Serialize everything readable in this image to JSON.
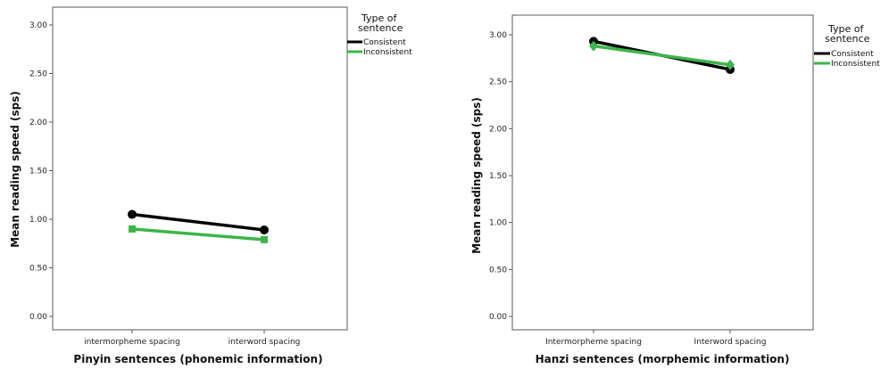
{
  "chart_data": [
    {
      "type": "line",
      "xlabel": "Pinyin sentences (phonemic information)",
      "ylabel": "Mean reading speed (sps)",
      "categories": [
        "intermorpheme spacing",
        "interword spacing"
      ],
      "ylim": [
        0,
        3.0
      ],
      "yticks": [
        "0.00",
        "0.50",
        "1.00",
        "1.50",
        "2.00",
        "2.50",
        "3.00"
      ],
      "grid": false,
      "legend": {
        "title": "Type of sentence",
        "title_lines": [
          "Type of",
          "sentence"
        ],
        "placement": "right"
      },
      "series": [
        {
          "name": "Consistent",
          "values": [
            1.05,
            0.89
          ],
          "color": "#000000",
          "marker": "circle"
        },
        {
          "name": "Inconsistent",
          "values": [
            0.9,
            0.79
          ],
          "color": "#3cb54a",
          "marker": "square"
        }
      ]
    },
    {
      "type": "line",
      "xlabel": "Hanzi sentences (morphemic information)",
      "ylabel": "Mean reading speed (sps)",
      "categories": [
        "Intermorpheme spacing",
        "Interword spacing"
      ],
      "ylim": [
        0,
        3.0
      ],
      "yticks": [
        "0.00",
        "0.50",
        "1.00",
        "1.50",
        "2.00",
        "2.50",
        "3.00"
      ],
      "grid": false,
      "legend": {
        "title": "Type of sentence",
        "title_lines": [
          "Type of",
          "sentence"
        ],
        "placement": "right"
      },
      "series": [
        {
          "name": "Consistent",
          "values": [
            2.93,
            2.63
          ],
          "color": "#000000",
          "marker": "circle"
        },
        {
          "name": "Inconsistent",
          "values": [
            2.88,
            2.68
          ],
          "color": "#3cb54a",
          "marker": "diamond"
        }
      ]
    }
  ]
}
